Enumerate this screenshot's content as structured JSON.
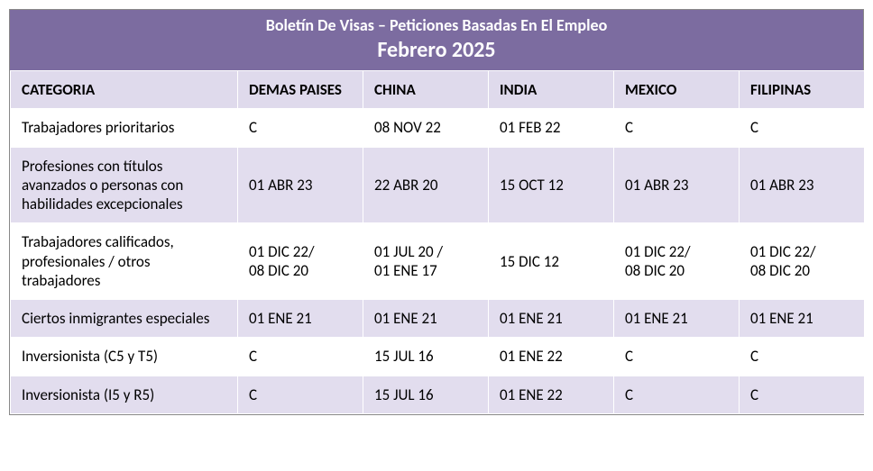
{
  "title": {
    "line1": "Boletín De Visas – Peticiones Basadas En El Empleo",
    "line2": "Febrero 2025"
  },
  "colors": {
    "titleBg": "#7c6ca0",
    "headerBg": "#dfdaec",
    "rowOdd": "#ffffff",
    "rowEven": "#e2ddee",
    "border": "#ffffff"
  },
  "columns": [
    "CATEGORIA",
    "DEMAS PAISES",
    "CHINA",
    "INDIA",
    "MEXICO",
    "FILIPINAS"
  ],
  "rows": [
    {
      "cells": [
        "Trabajadores prioritarios",
        "C",
        "08 NOV 22",
        "01 FEB 22",
        "C",
        "C"
      ]
    },
    {
      "cells": [
        "Profesiones con títulos avanzados o personas con habilidades excepcionales",
        "01 ABR 23",
        "22 ABR 20",
        "15 OCT 12",
        "01 ABR 23",
        "01 ABR 23"
      ]
    },
    {
      "cells": [
        "Trabajadores calificados, profesionales / otros trabajadores",
        "01 DIC 22/\n08 DIC 20",
        "01 JUL 20 /\n01 ENE 17",
        "15 DIC 12",
        "01 DIC 22/\n08 DIC 20",
        "01 DIC 22/\n08 DIC 20"
      ]
    },
    {
      "cells": [
        "Ciertos inmigrantes especiales",
        "01 ENE 21",
        "01 ENE 21",
        "01 ENE 21",
        "01 ENE 21",
        "01 ENE 21"
      ]
    },
    {
      "cells": [
        "Inversionista (C5 y T5)",
        "C",
        "15 JUL 16",
        "01 ENE 22",
        "C",
        "C"
      ]
    },
    {
      "cells": [
        "Inversionista (I5 y R5)",
        "C",
        "15 JUL 16",
        "01 ENE 22",
        "C",
        "C"
      ]
    }
  ]
}
